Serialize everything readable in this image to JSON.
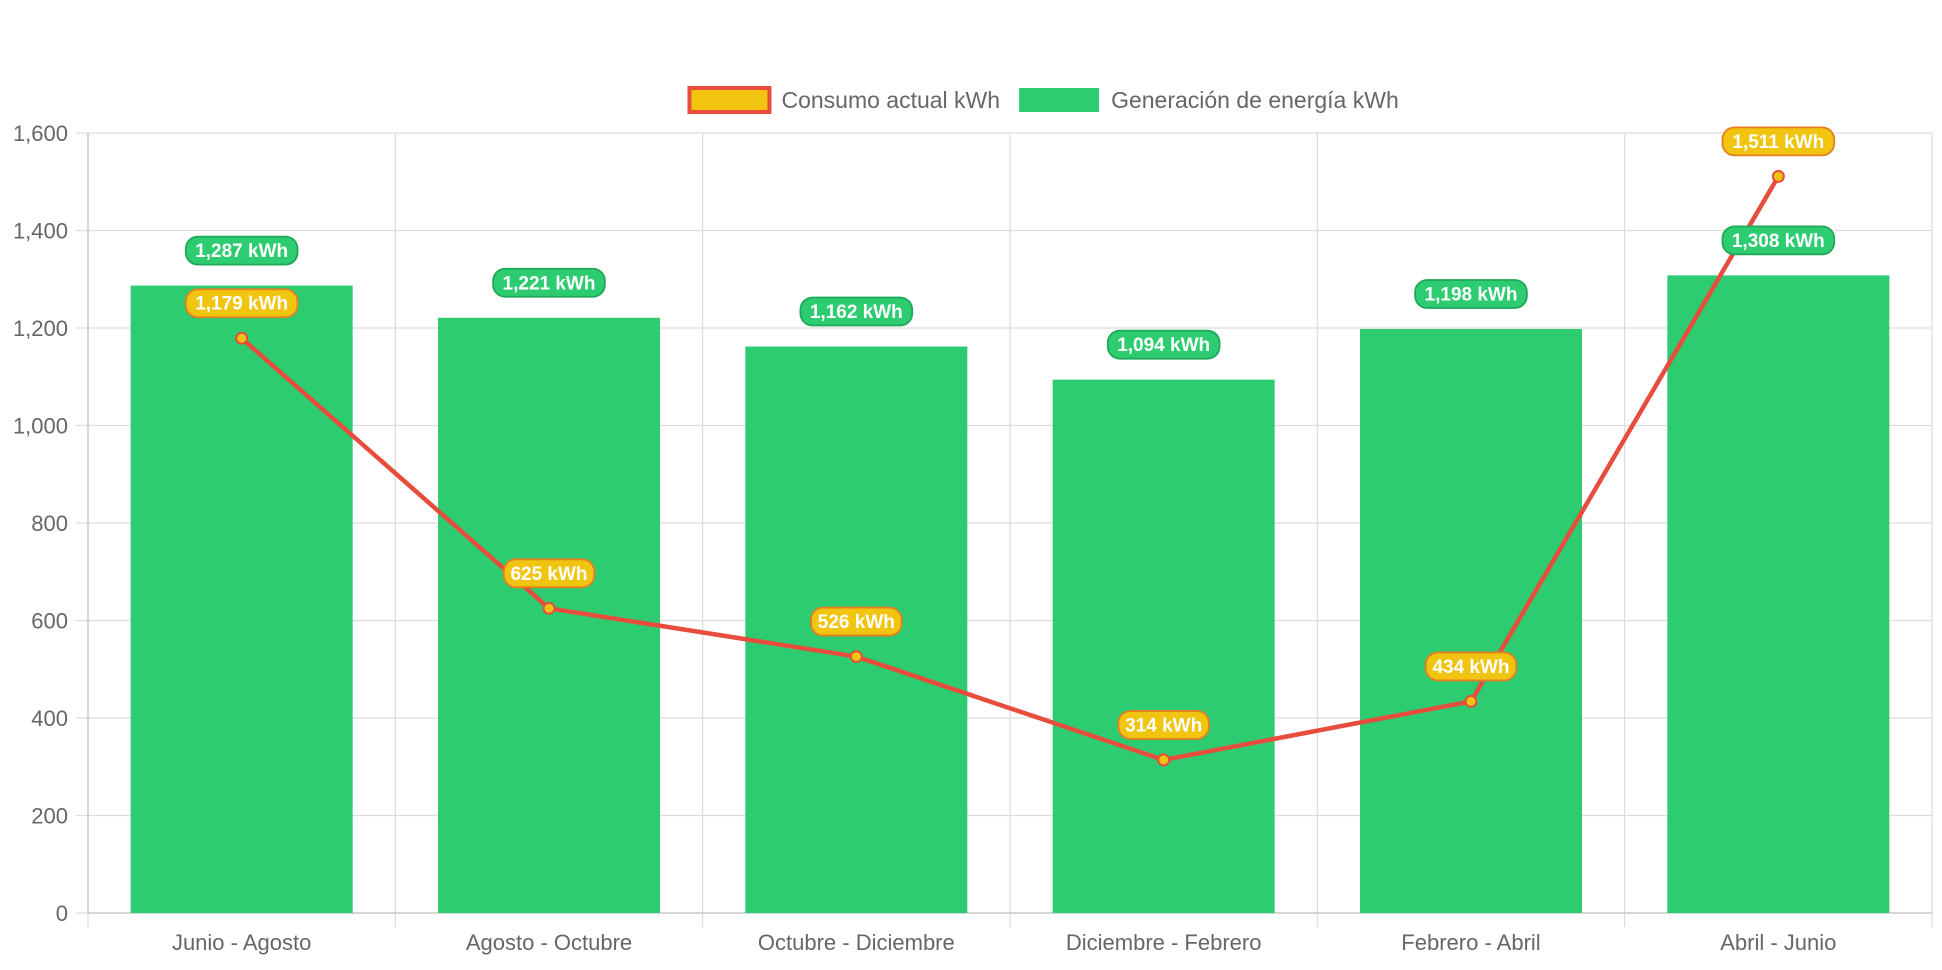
{
  "chart_data": {
    "type": "bar",
    "categories": [
      "Junio - Agosto",
      "Agosto - Octubre",
      "Octubre - Diciembre",
      "Diciembre - Febrero",
      "Febrero - Abril",
      "Abril - Junio"
    ],
    "series": [
      {
        "name": "Consumo actual kWh",
        "type": "line",
        "values": [
          1179,
          625,
          526,
          314,
          434,
          1511
        ],
        "labels": [
          "1,179 kWh",
          "625 kWh",
          "526 kWh",
          "314 kWh",
          "434 kWh",
          "1,511 kWh"
        ],
        "color": "#e74c3c",
        "fill": "#f1c40f"
      },
      {
        "name": "Generación de energía kWh",
        "type": "bar",
        "values": [
          1287,
          1221,
          1162,
          1094,
          1198,
          1308
        ],
        "labels": [
          "1,287 kWh",
          "1,221 kWh",
          "1,162 kWh",
          "1,094 kWh",
          "1,198 kWh",
          "1,308 kWh"
        ],
        "color": "#2ecc71"
      }
    ],
    "ylim": [
      0,
      1600
    ],
    "yticks": [
      0,
      200,
      400,
      600,
      800,
      1000,
      1200,
      1400,
      1600
    ],
    "ytick_labels": [
      "0",
      "200",
      "400",
      "600",
      "800",
      "1,000",
      "1,200",
      "1,400",
      "1,600"
    ],
    "grid": true,
    "legend": "top-center"
  }
}
